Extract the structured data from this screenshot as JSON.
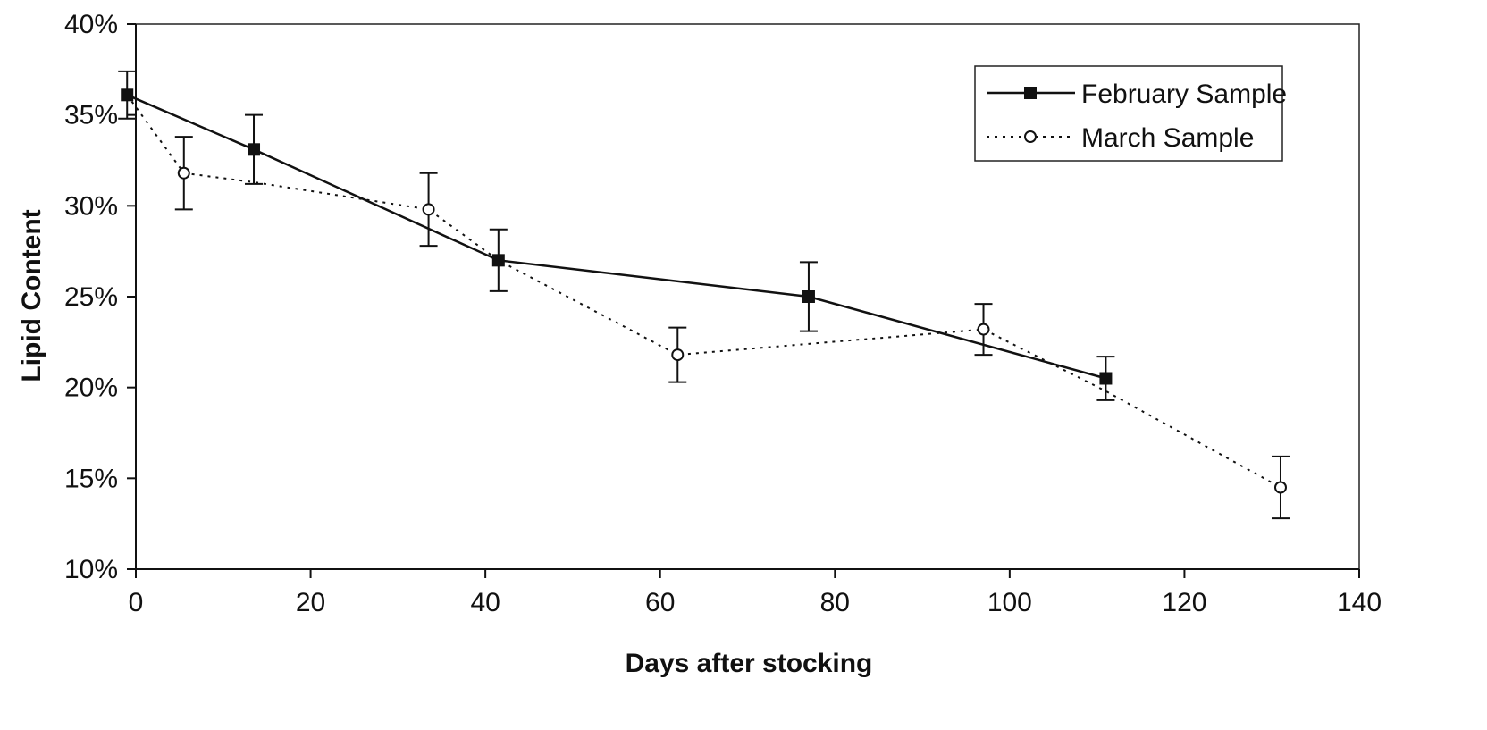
{
  "chart_data": {
    "type": "line",
    "title": "",
    "xlabel": "Days after stocking",
    "ylabel": "Lipid Content",
    "xlim": [
      0,
      140
    ],
    "ylim": [
      10,
      40
    ],
    "x_ticks": [
      0,
      20,
      40,
      60,
      80,
      100,
      120,
      140
    ],
    "y_ticks": [
      10,
      15,
      20,
      25,
      30,
      35,
      40
    ],
    "x_tick_labels": [
      "0",
      "20",
      "40",
      "60",
      "80",
      "100",
      "120",
      "140"
    ],
    "y_tick_labels": [
      "10%",
      "15%",
      "20%",
      "25%",
      "30%",
      "35%",
      "40%"
    ],
    "y_unit": "%",
    "grid": false,
    "legend_position": "top-right",
    "series": [
      {
        "name": "February Sample",
        "style": "solid",
        "marker": "filled-square",
        "color": "#111111",
        "x": [
          -1,
          13.5,
          41.5,
          77,
          111
        ],
        "y": [
          36.1,
          33.1,
          27.0,
          25.0,
          20.5
        ],
        "error": [
          1.3,
          1.9,
          1.7,
          1.9,
          1.2
        ]
      },
      {
        "name": "March Sample",
        "style": "dotted",
        "marker": "open-circle",
        "color": "#111111",
        "x": [
          5.5,
          33.5,
          62,
          97,
          131
        ],
        "y": [
          31.8,
          29.8,
          21.8,
          23.2,
          14.5
        ],
        "error": [
          2.0,
          2.0,
          1.5,
          1.4,
          1.7
        ]
      }
    ],
    "march_path": {
      "x": [
        -1,
        5.5,
        13.5,
        33.5,
        41.5,
        62,
        77,
        97,
        111,
        131
      ],
      "y": [
        36.1,
        31.8,
        31.3,
        29.8,
        27.0,
        21.8,
        22.4,
        23.2,
        19.8,
        14.5
      ]
    }
  }
}
